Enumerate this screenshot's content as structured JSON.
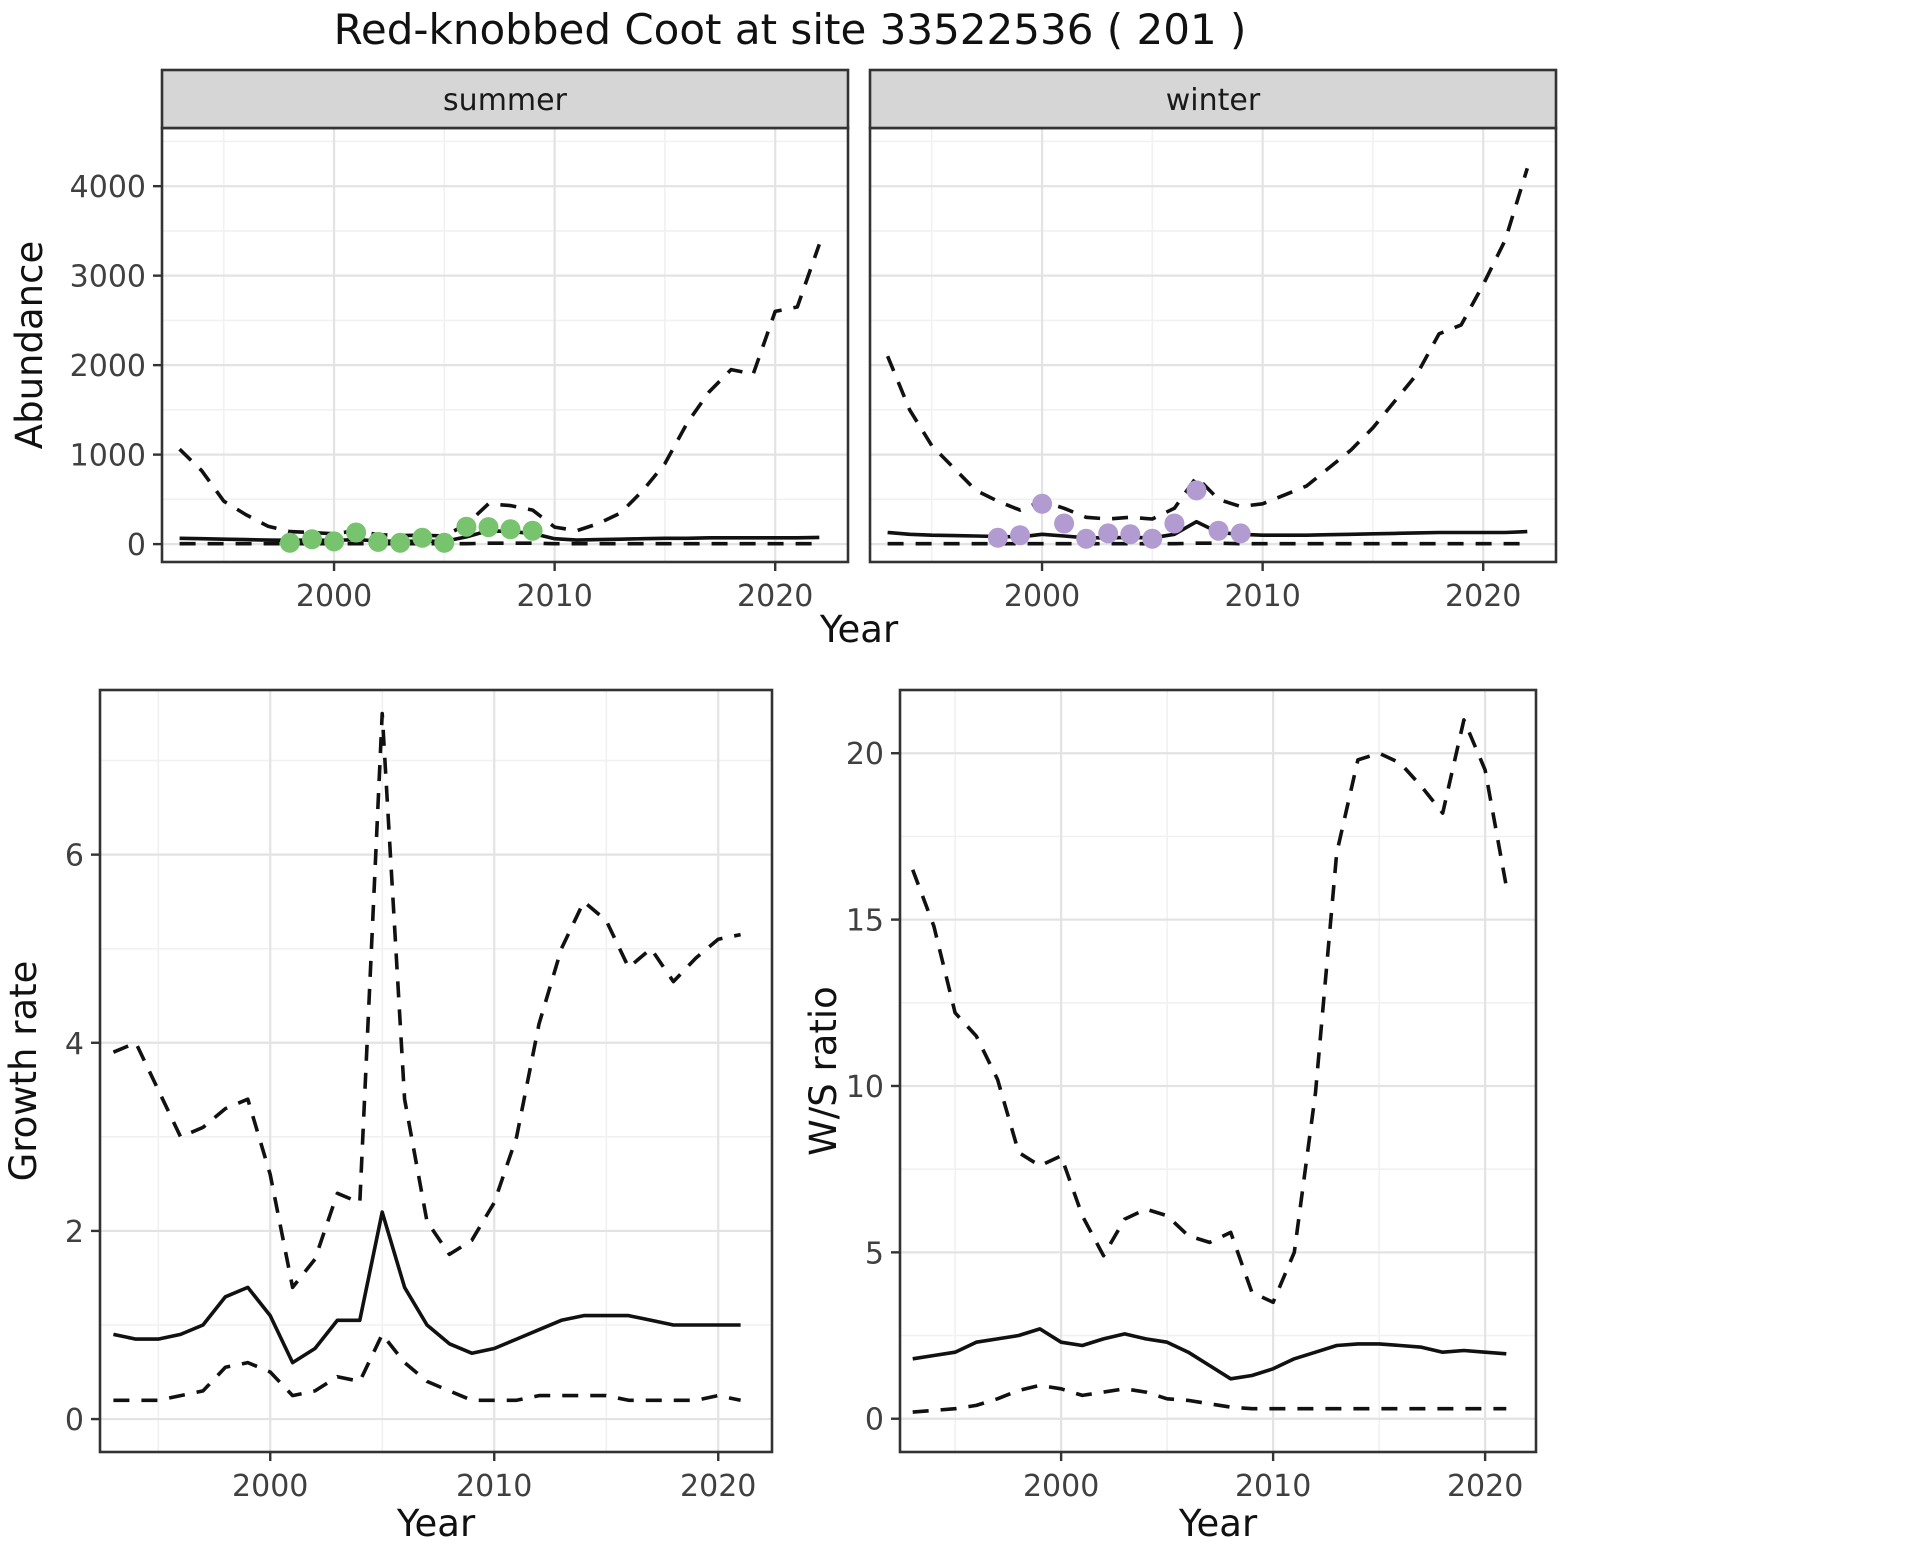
{
  "title": "Red-knobbed Coot at site 33522536 ( 201 )",
  "shared_xlabel": "Year",
  "chart_data": [
    {
      "id": "abundance-summer",
      "type": "line",
      "facet": "summer",
      "xlabel": "",
      "ylabel": "Abundance",
      "xlim": [
        1992.2,
        2023.3
      ],
      "ylim": [
        -200,
        4650
      ],
      "xticks": [
        2000,
        2010,
        2020
      ],
      "xminor": [
        1995,
        2005,
        2015
      ],
      "yticks": [
        0,
        1000,
        2000,
        3000,
        4000
      ],
      "yminor": [
        500,
        1500,
        2500,
        3500,
        4500
      ],
      "years": [
        1993,
        1994,
        1995,
        1996,
        1997,
        1998,
        1999,
        2000,
        2001,
        2002,
        2003,
        2004,
        2005,
        2006,
        2007,
        2008,
        2009,
        2010,
        2011,
        2012,
        2013,
        2014,
        2015,
        2016,
        2017,
        2018,
        2019,
        2020,
        2021,
        2022
      ],
      "series": [
        {
          "name": "upper-ci",
          "style": "dashed",
          "values": [
            1060,
            820,
            480,
            330,
            200,
            140,
            130,
            115,
            150,
            105,
            95,
            100,
            90,
            220,
            450,
            430,
            380,
            190,
            150,
            230,
            350,
            600,
            900,
            1350,
            1700,
            1950,
            1900,
            2600,
            2650,
            3350
          ]
        },
        {
          "name": "median",
          "style": "solid",
          "values": [
            65,
            60,
            55,
            50,
            45,
            42,
            45,
            40,
            50,
            35,
            30,
            35,
            30,
            80,
            150,
            140,
            120,
            60,
            45,
            50,
            55,
            60,
            65,
            65,
            70,
            70,
            70,
            70,
            70,
            75
          ]
        },
        {
          "name": "lower-ci",
          "style": "dashed",
          "values": [
            5,
            5,
            5,
            5,
            5,
            5,
            5,
            5,
            5,
            5,
            5,
            5,
            5,
            5,
            10,
            10,
            10,
            5,
            5,
            5,
            5,
            5,
            5,
            5,
            5,
            5,
            5,
            5,
            5,
            5
          ]
        }
      ],
      "points": {
        "name": "observed-counts-summer",
        "color": "#77c36e",
        "years": [
          1998,
          1999,
          2000,
          2001,
          2002,
          2003,
          2004,
          2005,
          2006,
          2007,
          2008,
          2009
        ],
        "values": [
          15,
          55,
          30,
          130,
          25,
          15,
          70,
          15,
          195,
          190,
          165,
          150
        ]
      }
    },
    {
      "id": "abundance-winter",
      "type": "line",
      "facet": "winter",
      "xlabel": "",
      "ylabel": "",
      "xlim": [
        1992.2,
        2023.3
      ],
      "ylim": [
        -200,
        4650
      ],
      "xticks": [
        2000,
        2010,
        2020
      ],
      "xminor": [
        1995,
        2005,
        2015
      ],
      "yticks": [
        0,
        1000,
        2000,
        3000,
        4000
      ],
      "yminor": [
        500,
        1500,
        2500,
        3500,
        4500
      ],
      "years": [
        1993,
        1994,
        1995,
        1996,
        1997,
        1998,
        1999,
        2000,
        2001,
        2002,
        2003,
        2004,
        2005,
        2006,
        2007,
        2008,
        2009,
        2010,
        2011,
        2012,
        2013,
        2014,
        2015,
        2016,
        2017,
        2018,
        2019,
        2020,
        2021,
        2022
      ],
      "series": [
        {
          "name": "upper-ci",
          "style": "dashed",
          "values": [
            2100,
            1500,
            1100,
            850,
            600,
            480,
            380,
            480,
            400,
            300,
            280,
            300,
            280,
            400,
            750,
            500,
            420,
            450,
            550,
            650,
            850,
            1050,
            1300,
            1600,
            1900,
            2350,
            2450,
            2900,
            3400,
            4200
          ]
        },
        {
          "name": "median",
          "style": "solid",
          "values": [
            130,
            110,
            100,
            95,
            90,
            85,
            80,
            110,
            90,
            70,
            70,
            75,
            70,
            110,
            250,
            130,
            110,
            100,
            100,
            100,
            105,
            110,
            115,
            120,
            125,
            130,
            130,
            130,
            130,
            140
          ]
        },
        {
          "name": "lower-ci",
          "style": "dashed",
          "values": [
            5,
            5,
            5,
            5,
            5,
            5,
            5,
            5,
            5,
            5,
            5,
            5,
            5,
            5,
            10,
            10,
            5,
            5,
            5,
            5,
            5,
            5,
            5,
            5,
            5,
            5,
            5,
            5,
            5,
            5
          ]
        }
      ],
      "points": {
        "name": "observed-counts-winter",
        "color": "#b29bd1",
        "years": [
          1998,
          1999,
          2000,
          2001,
          2002,
          2003,
          2004,
          2005,
          2006,
          2007,
          2008,
          2009
        ],
        "values": [
          70,
          100,
          450,
          230,
          60,
          120,
          110,
          60,
          230,
          600,
          150,
          120
        ]
      }
    },
    {
      "id": "growth-rate",
      "type": "line",
      "facet": "",
      "xlabel": "Year",
      "ylabel": "Growth rate",
      "xlim": [
        1992.4,
        2022.4
      ],
      "ylim": [
        -0.35,
        7.75
      ],
      "xticks": [
        2000,
        2010,
        2020
      ],
      "xminor": [
        1995,
        2005,
        2015
      ],
      "yticks": [
        0,
        2,
        4,
        6
      ],
      "yminor": [
        1,
        3,
        5,
        7
      ],
      "years": [
        1993,
        1994,
        1995,
        1996,
        1997,
        1998,
        1999,
        2000,
        2001,
        2002,
        2003,
        2004,
        2005,
        2006,
        2007,
        2008,
        2009,
        2010,
        2011,
        2012,
        2013,
        2014,
        2015,
        2016,
        2017,
        2018,
        2019,
        2020,
        2021
      ],
      "series": [
        {
          "name": "upper-ci",
          "style": "dashed",
          "values": [
            3.9,
            4.0,
            3.5,
            3.0,
            3.1,
            3.3,
            3.4,
            2.6,
            1.4,
            1.7,
            2.4,
            2.3,
            7.5,
            3.4,
            2.1,
            1.75,
            1.9,
            2.3,
            3.0,
            4.2,
            5.0,
            5.5,
            5.3,
            4.8,
            5.0,
            4.65,
            4.9,
            5.1,
            5.15
          ]
        },
        {
          "name": "median",
          "style": "solid",
          "values": [
            0.9,
            0.85,
            0.85,
            0.9,
            1.0,
            1.3,
            1.4,
            1.1,
            0.6,
            0.75,
            1.05,
            1.05,
            2.2,
            1.4,
            1.0,
            0.8,
            0.7,
            0.75,
            0.85,
            0.95,
            1.05,
            1.1,
            1.1,
            1.1,
            1.05,
            1.0,
            1.0,
            1.0,
            1.0
          ]
        },
        {
          "name": "lower-ci",
          "style": "dashed",
          "values": [
            0.2,
            0.2,
            0.2,
            0.25,
            0.3,
            0.55,
            0.6,
            0.5,
            0.25,
            0.3,
            0.45,
            0.4,
            0.9,
            0.6,
            0.4,
            0.3,
            0.2,
            0.2,
            0.2,
            0.25,
            0.25,
            0.25,
            0.25,
            0.2,
            0.2,
            0.2,
            0.2,
            0.25,
            0.2
          ]
        }
      ]
    },
    {
      "id": "ws-ratio",
      "type": "line",
      "facet": "",
      "xlabel": "Year",
      "ylabel": "W/S ratio",
      "xlim": [
        1992.4,
        2022.4
      ],
      "ylim": [
        -1.0,
        21.9
      ],
      "xticks": [
        2000,
        2010,
        2020
      ],
      "xminor": [
        1995,
        2005,
        2015
      ],
      "yticks": [
        0,
        5,
        10,
        15,
        20
      ],
      "yminor": [
        2.5,
        7.5,
        12.5,
        17.5
      ],
      "years": [
        1993,
        1994,
        1995,
        1996,
        1997,
        1998,
        1999,
        2000,
        2001,
        2002,
        2003,
        2004,
        2005,
        2006,
        2007,
        2008,
        2009,
        2010,
        2011,
        2012,
        2013,
        2014,
        2015,
        2016,
        2017,
        2018,
        2019,
        2020,
        2021
      ],
      "series": [
        {
          "name": "upper-ci",
          "style": "dashed",
          "values": [
            16.5,
            14.8,
            12.2,
            11.5,
            10.2,
            8.0,
            7.6,
            7.9,
            6.1,
            4.9,
            6.0,
            6.3,
            6.1,
            5.5,
            5.3,
            5.6,
            3.8,
            3.5,
            5.0,
            9.8,
            17.0,
            19.8,
            20.0,
            19.7,
            19.0,
            18.2,
            21.0,
            19.5,
            16.0
          ]
        },
        {
          "name": "median",
          "style": "solid",
          "values": [
            1.8,
            1.9,
            2.0,
            2.3,
            2.4,
            2.5,
            2.7,
            2.3,
            2.2,
            2.4,
            2.55,
            2.4,
            2.3,
            2.0,
            1.6,
            1.2,
            1.3,
            1.5,
            1.8,
            2.0,
            2.2,
            2.25,
            2.25,
            2.2,
            2.15,
            2.0,
            2.05,
            2.0,
            1.95
          ]
        },
        {
          "name": "lower-ci",
          "style": "dashed",
          "values": [
            0.2,
            0.25,
            0.3,
            0.4,
            0.6,
            0.85,
            1.0,
            0.9,
            0.7,
            0.8,
            0.9,
            0.8,
            0.6,
            0.55,
            0.45,
            0.35,
            0.3,
            0.3,
            0.3,
            0.3,
            0.3,
            0.3,
            0.3,
            0.3,
            0.3,
            0.3,
            0.3,
            0.3,
            0.3
          ]
        }
      ]
    }
  ],
  "style": {
    "line_color": "#111111",
    "grid_major_color": "#e3e3e3",
    "grid_minor_color": "#f1f1f1",
    "strip_fill": "#d6d6d6",
    "panel_border_color": "#333333"
  }
}
